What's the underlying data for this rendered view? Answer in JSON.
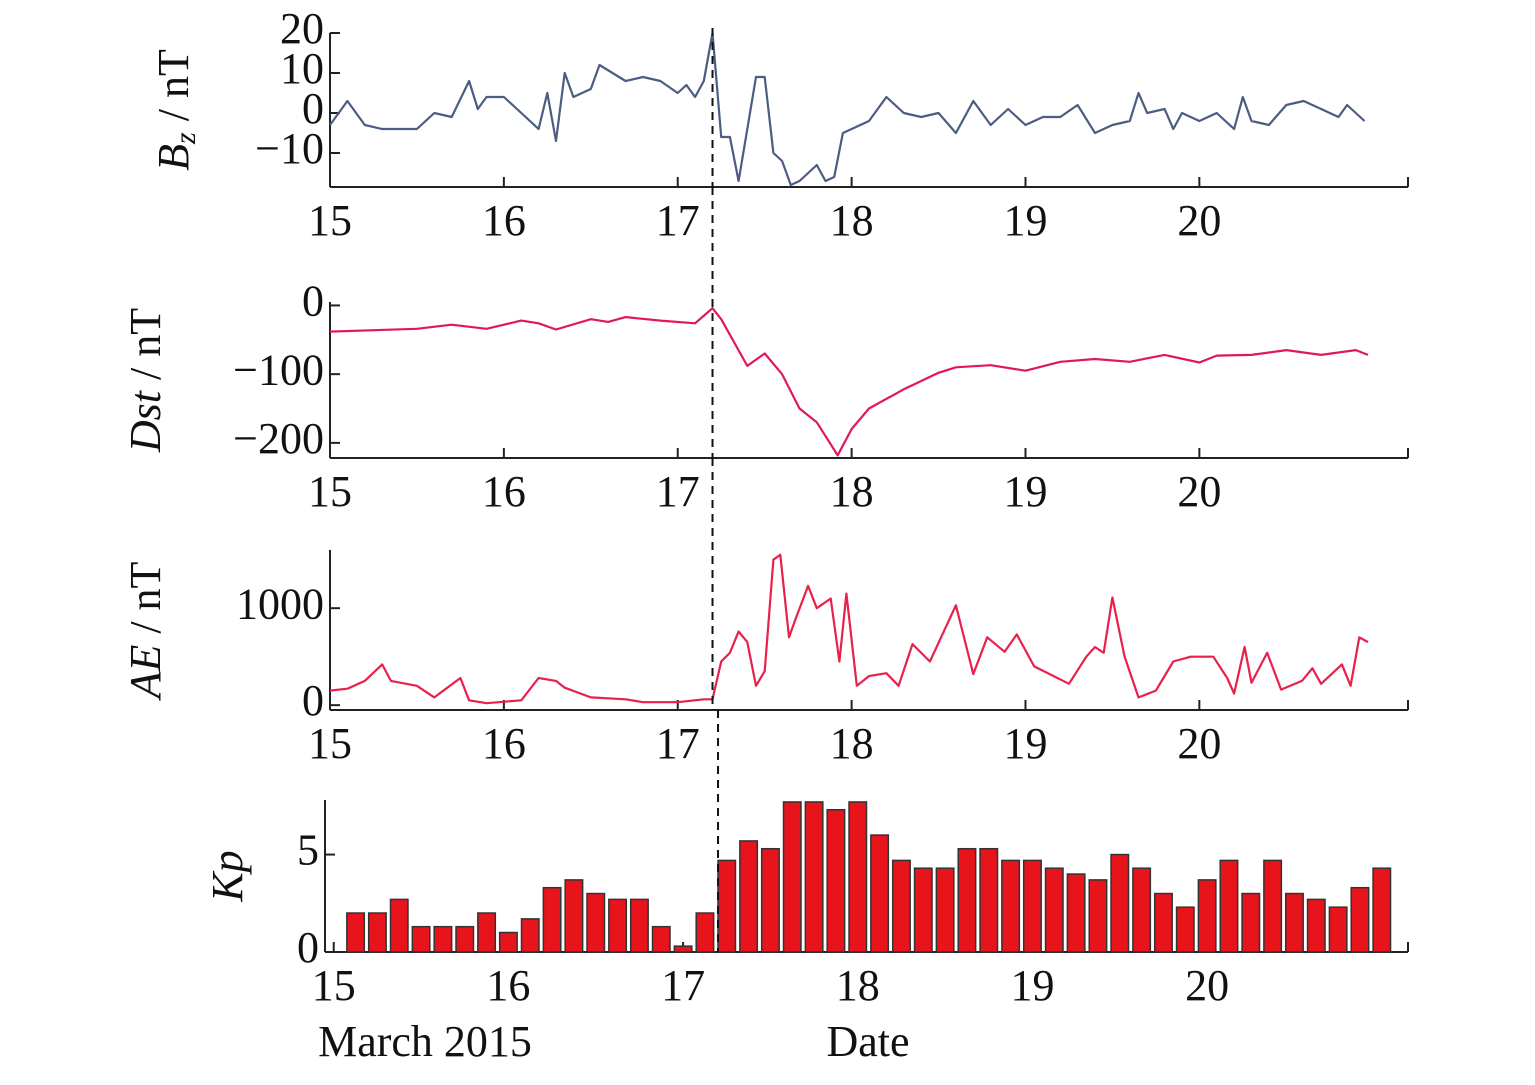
{
  "chart_data": [
    {
      "type": "line",
      "ylabel": {
        "text": "B",
        "subscript": "z",
        "unit": " / nT"
      },
      "color": "#4b5d80",
      "x": [
        15.0,
        15.1,
        15.2,
        15.3,
        15.4,
        15.5,
        15.6,
        15.7,
        15.8,
        15.85,
        15.9,
        16.0,
        16.1,
        16.2,
        16.25,
        16.3,
        16.35,
        16.4,
        16.5,
        16.55,
        16.7,
        16.8,
        16.9,
        17.0,
        17.05,
        17.1,
        17.15,
        17.2,
        17.25,
        17.3,
        17.35,
        17.45,
        17.5,
        17.55,
        17.6,
        17.65,
        17.7,
        17.8,
        17.85,
        17.9,
        17.95,
        18.0,
        18.1,
        18.2,
        18.3,
        18.4,
        18.5,
        18.6,
        18.7,
        18.8,
        18.9,
        19.0,
        19.1,
        19.2,
        19.3,
        19.4,
        19.5,
        19.6,
        19.65,
        19.7,
        19.8,
        19.85,
        19.9,
        20.0,
        20.1,
        20.2,
        20.25,
        20.3,
        20.4,
        20.5,
        20.6,
        20.7,
        20.8,
        20.85,
        20.95
      ],
      "values": [
        -3,
        3,
        -3,
        -4,
        -4,
        -4,
        0,
        -1,
        8,
        1,
        4,
        4,
        0,
        -4,
        5,
        -7,
        10,
        4,
        6,
        12,
        8,
        9,
        8,
        5,
        7,
        4,
        8,
        20,
        -6,
        -6,
        -17,
        9,
        9,
        -10,
        -12,
        -18,
        -17,
        -13,
        -17,
        -16,
        -5,
        -4,
        -2,
        4,
        0,
        -1,
        0,
        -5,
        3,
        -3,
        1,
        -3,
        -1,
        -1,
        2,
        -5,
        -3,
        -2,
        5,
        0,
        1,
        -4,
        0,
        -2,
        0,
        -4,
        4,
        -2,
        -3,
        2,
        3,
        1,
        -1,
        2,
        -2
      ],
      "xlim": [
        15,
        21.2
      ],
      "xticks": [
        15,
        16,
        17,
        18,
        19,
        20
      ],
      "ylim": [
        -18.5,
        20
      ],
      "yticks": [
        20,
        10,
        0,
        {
          "value": -10,
          "label": "−10"
        }
      ],
      "vline": 17.2
    },
    {
      "type": "line",
      "ylabel": {
        "text": "Dst",
        "unit": " / nT"
      },
      "color": "#e0185a",
      "x": [
        15.0,
        15.5,
        15.7,
        15.9,
        16.1,
        16.2,
        16.3,
        16.5,
        16.6,
        16.7,
        16.9,
        17.1,
        17.2,
        17.25,
        17.4,
        17.5,
        17.6,
        17.7,
        17.8,
        17.92,
        18.0,
        18.1,
        18.3,
        18.5,
        18.6,
        18.8,
        19.0,
        19.2,
        19.4,
        19.6,
        19.8,
        20.0,
        20.1,
        20.3,
        20.5,
        20.7,
        20.9,
        20.97
      ],
      "values": [
        -38,
        -34,
        -28,
        -34,
        -22,
        -26,
        -35,
        -20,
        -24,
        -17,
        -22,
        -26,
        -4,
        -20,
        -88,
        -70,
        -100,
        -150,
        -170,
        -218,
        -180,
        -150,
        -122,
        -98,
        -90,
        -87,
        -95,
        -82,
        -78,
        -82,
        -72,
        -83,
        -73,
        -72,
        -65,
        -72,
        -65,
        -72
      ],
      "xlim": [
        15,
        21.2
      ],
      "xticks": [
        15,
        16,
        17,
        18,
        19,
        20
      ],
      "ylim": [
        -222,
        5
      ],
      "yticks": [
        0,
        {
          "value": -100,
          "label": "−100"
        },
        {
          "value": -200,
          "label": "−200"
        }
      ],
      "vline": 17.2
    },
    {
      "type": "line",
      "ylabel": {
        "text": "AE",
        "unit": " / nT"
      },
      "color": "#e8204a",
      "x": [
        15.0,
        15.1,
        15.2,
        15.3,
        15.35,
        15.5,
        15.6,
        15.75,
        15.8,
        15.9,
        16.1,
        16.2,
        16.3,
        16.35,
        16.5,
        16.7,
        16.8,
        17.0,
        17.15,
        17.2,
        17.25,
        17.3,
        17.35,
        17.4,
        17.45,
        17.5,
        17.55,
        17.59,
        17.64,
        17.68,
        17.75,
        17.8,
        17.88,
        17.93,
        17.97,
        18.03,
        18.1,
        18.2,
        18.27,
        18.35,
        18.45,
        18.6,
        18.7,
        18.78,
        18.88,
        18.95,
        19.05,
        19.25,
        19.35,
        19.4,
        19.45,
        19.5,
        19.57,
        19.65,
        19.75,
        19.85,
        19.95,
        20.08,
        20.16,
        20.2,
        20.26,
        20.3,
        20.39,
        20.47,
        20.59,
        20.65,
        20.7,
        20.82,
        20.87,
        20.92,
        20.97
      ],
      "values": [
        150,
        170,
        250,
        420,
        250,
        200,
        80,
        280,
        50,
        20,
        50,
        280,
        250,
        180,
        80,
        60,
        30,
        30,
        60,
        60,
        450,
        540,
        760,
        650,
        200,
        350,
        1500,
        1550,
        700,
        900,
        1230,
        1000,
        1100,
        450,
        1150,
        200,
        300,
        330,
        200,
        630,
        450,
        1030,
        320,
        700,
        550,
        730,
        400,
        220,
        500,
        600,
        540,
        1110,
        500,
        80,
        150,
        450,
        500,
        500,
        280,
        120,
        600,
        230,
        540,
        160,
        250,
        380,
        220,
        420,
        200,
        700,
        650
      ],
      "xlim": [
        15,
        21.2
      ],
      "xticks": [
        15,
        16,
        17,
        18,
        19,
        20
      ],
      "ylim": [
        -50,
        1600
      ],
      "yticks": [
        0,
        1000
      ],
      "vline": 17.2
    },
    {
      "type": "bar",
      "ylabel": {
        "text": "Kp"
      },
      "color": "#e8141c",
      "xlabel": "Date",
      "annotation": "March 2015",
      "x": [
        15.125,
        15.25,
        15.375,
        15.5,
        15.625,
        15.75,
        15.875,
        16.0,
        16.125,
        16.25,
        16.375,
        16.5,
        16.625,
        16.75,
        16.875,
        17.0,
        17.125,
        17.25,
        17.375,
        17.5,
        17.625,
        17.75,
        17.875,
        18.0,
        18.125,
        18.25,
        18.375,
        18.5,
        18.625,
        18.75,
        18.875,
        19.0,
        19.125,
        19.25,
        19.375,
        19.5,
        19.625,
        19.75,
        19.875,
        20.0,
        20.125,
        20.25,
        20.375,
        20.5,
        20.625,
        20.75,
        20.875,
        21.0
      ],
      "values": [
        2.0,
        2.0,
        2.7,
        1.3,
        1.3,
        1.3,
        2.0,
        1.0,
        1.7,
        3.3,
        3.7,
        3.0,
        2.7,
        2.7,
        1.3,
        0.3,
        2.0,
        4.7,
        5.7,
        5.3,
        7.7,
        7.7,
        7.3,
        7.7,
        6.0,
        4.7,
        4.3,
        4.3,
        5.3,
        5.3,
        4.7,
        4.7,
        4.3,
        4.0,
        3.7,
        5.0,
        4.3,
        3.0,
        2.3,
        3.7,
        4.7,
        3.0,
        4.7,
        3.0,
        2.7,
        2.3,
        3.3,
        4.3
      ],
      "xlim": [
        14.95,
        21.15
      ],
      "xticks": [
        15,
        16,
        17,
        18,
        19,
        20
      ],
      "ylim": [
        0,
        7.8
      ],
      "yticks": [
        0,
        5
      ],
      "vline": 17.2
    }
  ]
}
